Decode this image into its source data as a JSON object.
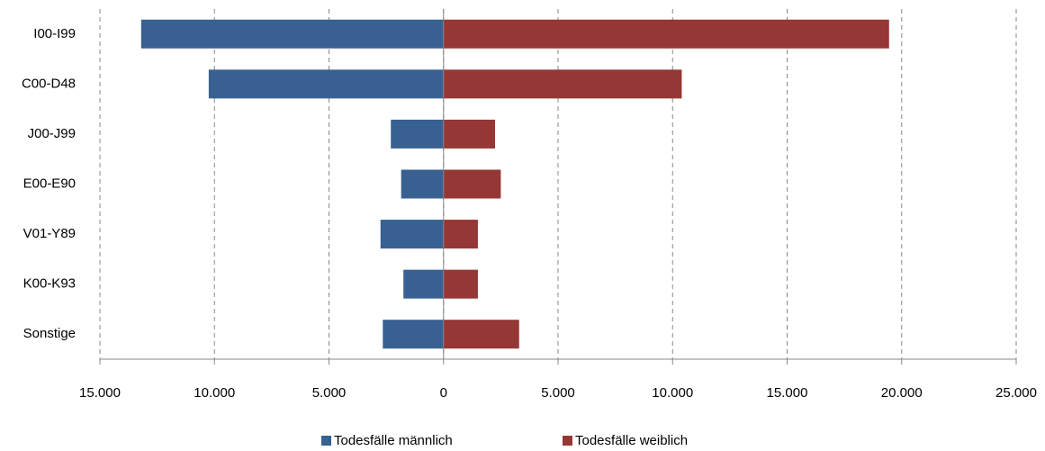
{
  "chart_data": {
    "type": "butterfly",
    "categories": [
      "I00-I99",
      "C00-D48",
      "J00-J99",
      "E00-E90",
      "V01-Y89",
      "K00-K93",
      "Sonstige"
    ],
    "series": [
      {
        "name": "Todesfälle männlich",
        "color": "#386192",
        "values": [
          -13200,
          -10250,
          -2300,
          -1850,
          -2750,
          -1750,
          -2650
        ]
      },
      {
        "name": "Todesfälle weiblich",
        "color": "#953735",
        "values": [
          19450,
          10400,
          2250,
          2500,
          1500,
          1500,
          3300
        ]
      }
    ],
    "xlim": [
      -15000,
      25000
    ],
    "xticks": [
      {
        "value": -15000,
        "label": "15.000"
      },
      {
        "value": -10000,
        "label": "10.000"
      },
      {
        "value": -5000,
        "label": "5.000"
      },
      0,
      {
        "value": 5000,
        "label": "5.000"
      },
      {
        "value": 10000,
        "label": "10.000"
      },
      {
        "value": 15000,
        "label": "15.000"
      },
      {
        "value": 20000,
        "label": "20.000"
      },
      {
        "value": 25000,
        "label": "25.000"
      }
    ],
    "grid": true,
    "legend": "bottom"
  }
}
